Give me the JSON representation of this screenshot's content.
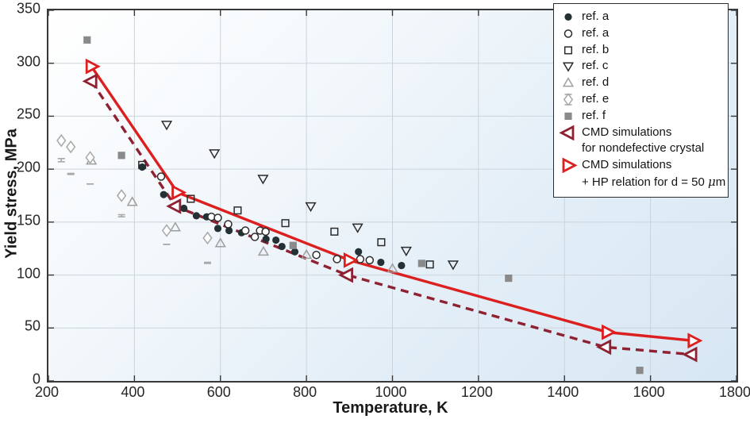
{
  "chart_data": {
    "type": "scatter",
    "title": "",
    "xlabel": "Temperature, K",
    "ylabel": "Yield stress, MPa",
    "xlim": [
      200,
      1800
    ],
    "ylim": [
      0,
      350
    ],
    "x_ticks": [
      200,
      400,
      600,
      800,
      1000,
      1200,
      1400,
      1600,
      1800
    ],
    "y_ticks": [
      0,
      50,
      100,
      150,
      200,
      250,
      300,
      350
    ],
    "grid": true,
    "legend_position": "top-right",
    "series": [
      {
        "name": "ref. a",
        "marker": "circle-filled",
        "color": "#233134",
        "points": [
          [
            418,
            202
          ],
          [
            468,
            176
          ],
          [
            515,
            163
          ],
          [
            544,
            156
          ],
          [
            568,
            155
          ],
          [
            594,
            144
          ],
          [
            620,
            142
          ],
          [
            649,
            140
          ],
          [
            706,
            134
          ],
          [
            729,
            133
          ],
          [
            743,
            127
          ],
          [
            773,
            122
          ],
          [
            921,
            122
          ],
          [
            973,
            112
          ],
          [
            1021,
            109
          ]
        ]
      },
      {
        "name": "ref. a",
        "marker": "circle-open",
        "color": "#2b2b2b",
        "points": [
          [
            462,
            193
          ],
          [
            579,
            155
          ],
          [
            594,
            154
          ],
          [
            618,
            148
          ],
          [
            658,
            142
          ],
          [
            680,
            136
          ],
          [
            692,
            142
          ],
          [
            705,
            141
          ],
          [
            823,
            119
          ],
          [
            871,
            115
          ],
          [
            925,
            115
          ],
          [
            947,
            114
          ]
        ]
      },
      {
        "name": "ref. b",
        "marker": "square-open",
        "color": "#2b2b2b",
        "points": [
          [
            418,
            204
          ],
          [
            531,
            172
          ],
          [
            640,
            161
          ],
          [
            751,
            149
          ],
          [
            865,
            141
          ],
          [
            974,
            131
          ],
          [
            1087,
            110
          ]
        ]
      },
      {
        "name": "ref. c",
        "marker": "triangle-down",
        "color": "#2b2b2b",
        "points": [
          [
            475,
            242
          ],
          [
            586,
            215
          ],
          [
            699,
            191
          ],
          [
            810,
            165
          ],
          [
            919,
            145
          ],
          [
            1032,
            123
          ],
          [
            1141,
            110
          ]
        ]
      },
      {
        "name": "ref. d",
        "marker": "triangle-up",
        "color": "#9e9e9e",
        "points": [
          [
            300,
            208
          ],
          [
            395,
            169
          ],
          [
            495,
            145
          ],
          [
            600,
            130
          ],
          [
            700,
            122
          ],
          [
            800,
            119
          ],
          [
            1000,
            106
          ]
        ]
      },
      {
        "name": "ref. e",
        "marker": "diamond-errorbar",
        "color": "#a8a8a8",
        "points": [
          [
            230,
            227,
            17,
            20
          ],
          [
            252,
            221,
            25,
            26
          ],
          [
            297,
            211,
            25,
            25
          ],
          [
            370,
            175,
            20,
            18
          ],
          [
            475,
            142,
            13,
            13
          ],
          [
            570,
            135,
            24,
            23
          ]
        ]
      },
      {
        "name": "ref. f",
        "marker": "square-filled",
        "color": "#8a8a8a",
        "points": [
          [
            290,
            322
          ],
          [
            370,
            213
          ],
          [
            769,
            128
          ],
          [
            1068,
            111
          ],
          [
            1270,
            97
          ],
          [
            1575,
            10
          ]
        ]
      },
      {
        "name": "CMD simulations for nondefective crystal",
        "marker": "triangle-left",
        "color": "#8e2132",
        "line": "dashed",
        "line_width": 3.4,
        "points": [
          [
            300,
            283
          ],
          [
            495,
            165
          ],
          [
            895,
            100
          ],
          [
            1495,
            32
          ],
          [
            1695,
            25
          ]
        ]
      },
      {
        "name": "CMD simulations + HP relation for d = 50 μm",
        "marker": "triangle-right",
        "color": "#dc1f1f",
        "line": "solid",
        "line_width": 3.4,
        "points": [
          [
            300,
            297
          ],
          [
            500,
            178
          ],
          [
            900,
            114
          ],
          [
            1500,
            46
          ],
          [
            1700,
            38
          ]
        ]
      }
    ],
    "legend": {
      "entries": [
        {
          "marker": "circle-filled",
          "color": "#233134",
          "lines": [
            "ref. a"
          ]
        },
        {
          "marker": "circle-open",
          "color": "#2b2b2b",
          "lines": [
            "ref. a"
          ]
        },
        {
          "marker": "square-open",
          "color": "#2b2b2b",
          "lines": [
            "ref. b"
          ]
        },
        {
          "marker": "triangle-down",
          "color": "#2b2b2b",
          "lines": [
            "ref. c"
          ]
        },
        {
          "marker": "triangle-up",
          "color": "#9e9e9e",
          "lines": [
            "ref. d"
          ]
        },
        {
          "marker": "diamond-errorbar",
          "color": "#a8a8a8",
          "lines": [
            "ref. e"
          ]
        },
        {
          "marker": "square-filled",
          "color": "#8a8a8a",
          "lines": [
            "ref. f"
          ]
        },
        {
          "marker": "triangle-left",
          "color": "#8e2132",
          "lines": [
            "CMD simulations",
            "for nondefective crystal"
          ]
        },
        {
          "marker": "triangle-right",
          "color": "#dc1f1f",
          "lines": [
            "CMD simulations",
            "+ HP relation for d = 50 μm"
          ]
        }
      ]
    },
    "style": {
      "gridline_color": "#cbd4dc",
      "spine_color": "#383838",
      "tick_color": "#383838",
      "open_fill": "#ffffff"
    }
  }
}
